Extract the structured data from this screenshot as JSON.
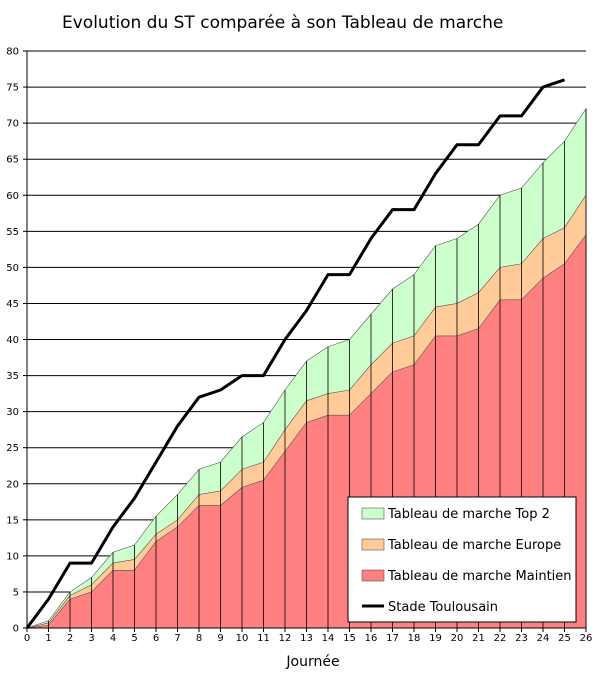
{
  "chart_data": {
    "type": "area",
    "title": "Evolution du ST comparée à son Tableau de marche",
    "xlabel": "Journée",
    "ylabel": "",
    "x": [
      0,
      1,
      2,
      3,
      4,
      5,
      6,
      7,
      8,
      9,
      10,
      11,
      12,
      13,
      14,
      15,
      16,
      17,
      18,
      19,
      20,
      21,
      22,
      23,
      24,
      25,
      26
    ],
    "xlim": [
      0,
      26
    ],
    "ylim": [
      0,
      80
    ],
    "yticks": [
      0,
      5,
      10,
      15,
      20,
      25,
      30,
      35,
      40,
      45,
      50,
      55,
      60,
      65,
      70,
      75,
      80
    ],
    "grid": "horizontal",
    "legend_position": "bottom-right",
    "series": [
      {
        "name": "Tableau de marche Top 2",
        "kind": "area",
        "color": "#ccffcc",
        "values": [
          0,
          1,
          5,
          7,
          10.5,
          11.5,
          15.5,
          18.5,
          22,
          23,
          26.5,
          28.5,
          33,
          37,
          39,
          40,
          43.5,
          47,
          49,
          53,
          54,
          56,
          60,
          61,
          64.5,
          67.5,
          72
        ]
      },
      {
        "name": "Tableau de marche Europe",
        "kind": "area",
        "color": "#ffcc99",
        "values": [
          0,
          0.7,
          4.5,
          6,
          9,
          9.5,
          13,
          15,
          18.5,
          19,
          22,
          23,
          27.5,
          31.5,
          32.5,
          33,
          36.5,
          39.5,
          40.5,
          44.5,
          45,
          46.5,
          50,
          50.5,
          54,
          55.5,
          60
        ]
      },
      {
        "name": "Tableau de marche Maintien",
        "kind": "area",
        "color": "#ff8080",
        "values": [
          0,
          0.4,
          4,
          5,
          8,
          8,
          12,
          14,
          17,
          17,
          19.5,
          20.5,
          24.5,
          28.5,
          29.5,
          29.5,
          32.5,
          35.5,
          36.5,
          40.5,
          40.5,
          41.5,
          45.5,
          45.5,
          48.5,
          50.5,
          54.5
        ]
      },
      {
        "name": "Stade Toulousain",
        "kind": "line",
        "color": "#000000",
        "values": [
          0,
          4,
          9,
          9,
          14,
          18,
          23,
          28,
          32,
          33,
          35,
          35,
          40,
          44,
          49,
          49,
          54,
          58,
          58,
          63,
          67,
          67,
          71,
          71,
          75,
          76,
          null
        ]
      }
    ]
  }
}
